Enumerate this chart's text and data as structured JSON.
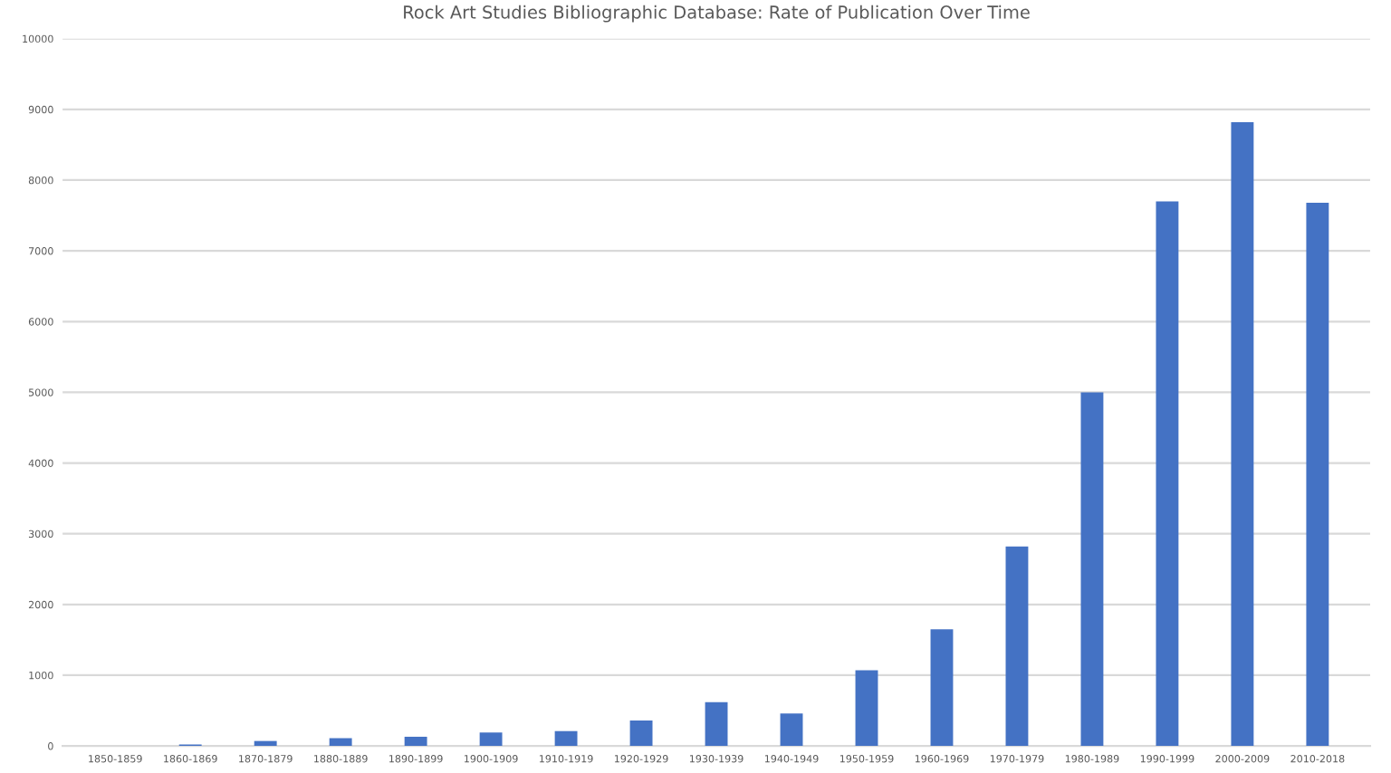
{
  "chart_data": {
    "type": "bar",
    "title": "Rock Art Studies Bibliographic Database: Rate of Publication Over Time",
    "categories": [
      "1850-1859",
      "1860-1869",
      "1870-1879",
      "1880-1889",
      "1890-1899",
      "1900-1909",
      "1910-1919",
      "1920-1929",
      "1930-1939",
      "1940-1949",
      "1950-1959",
      "1960-1969",
      "1970-1979",
      "1980-1989",
      "1990-1999",
      "2000-2009",
      "2010-2018"
    ],
    "values": [
      0,
      20,
      70,
      110,
      130,
      190,
      210,
      360,
      620,
      460,
      1070,
      1650,
      2820,
      5000,
      7700,
      8820,
      7680
    ],
    "color": "#4472c4",
    "ylim": [
      0,
      10000
    ],
    "yticks": [
      0,
      1000,
      2000,
      3000,
      4000,
      5000,
      6000,
      7000,
      8000,
      9000,
      10000
    ],
    "grid": "y",
    "legend": false
  }
}
